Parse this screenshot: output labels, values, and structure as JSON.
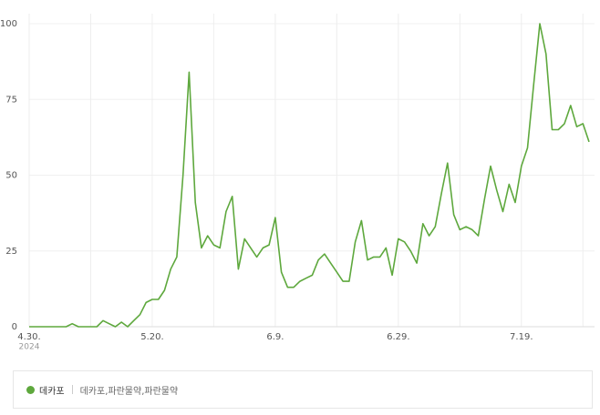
{
  "chart_data": {
    "type": "line",
    "categories": [
      "4.30.",
      null,
      null,
      null,
      null,
      null,
      null,
      null,
      null,
      null,
      null,
      null,
      null,
      null,
      null,
      null,
      null,
      null,
      null,
      null,
      "5.20.",
      null,
      null,
      null,
      null,
      null,
      null,
      null,
      null,
      null,
      null,
      null,
      null,
      null,
      null,
      null,
      null,
      null,
      null,
      null,
      "6.9.",
      null,
      null,
      null,
      null,
      null,
      null,
      null,
      null,
      null,
      null,
      null,
      null,
      null,
      null,
      null,
      null,
      null,
      null,
      null,
      "6.29.",
      null,
      null,
      null,
      null,
      null,
      null,
      null,
      null,
      null,
      null,
      null,
      null,
      null,
      null,
      null,
      null,
      null,
      null,
      null,
      "7.19.",
      null,
      null,
      null,
      null,
      null,
      null,
      null,
      null,
      null,
      null,
      null
    ],
    "x_year_label": "2024",
    "series": [
      {
        "name": "데카포",
        "keywords": "데카포,파란물약,파란물약",
        "color": "#5ea83d",
        "values": [
          0,
          0,
          0,
          0,
          0,
          0,
          0,
          1,
          0,
          0,
          0,
          0,
          2,
          1,
          0,
          1.5,
          0,
          2,
          4,
          8,
          9,
          9,
          12,
          19,
          23,
          50,
          84,
          41,
          26,
          30,
          27,
          26,
          38,
          43,
          19,
          29,
          26,
          23,
          26,
          27,
          36,
          18,
          13,
          13,
          15,
          16,
          17,
          22,
          24,
          21,
          18,
          15,
          15,
          28,
          35,
          22,
          23,
          23,
          26,
          17,
          29,
          28,
          25,
          21,
          34,
          30,
          33,
          44,
          54,
          37,
          32,
          33,
          32,
          30,
          42,
          53,
          45,
          38,
          47,
          41,
          53,
          59,
          80,
          100,
          90,
          65,
          65,
          67,
          73,
          66,
          67,
          61
        ]
      }
    ],
    "ylim": [
      0,
      100
    ],
    "yticks": [
      0,
      25,
      50,
      75,
      100
    ],
    "grid": true
  }
}
